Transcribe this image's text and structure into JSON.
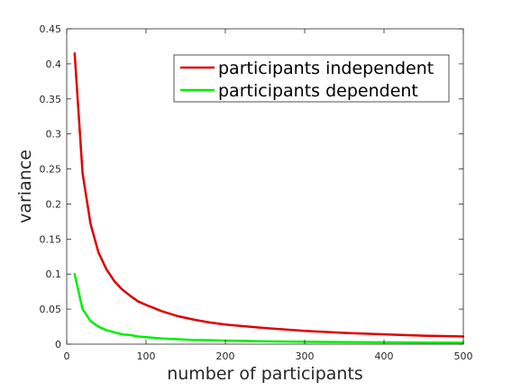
{
  "chart_data": {
    "type": "line",
    "title": "",
    "xlabel": "number of participants",
    "ylabel": "variance",
    "xlim": [
      0,
      500
    ],
    "ylim": [
      0,
      0.45
    ],
    "xticks": [
      0,
      100,
      200,
      300,
      400,
      500
    ],
    "xtick_labels": [
      "0",
      "100",
      "200",
      "300",
      "400",
      "500"
    ],
    "yticks": [
      0,
      0.05,
      0.1,
      0.15,
      0.2,
      0.25,
      0.3,
      0.35,
      0.4,
      0.45
    ],
    "ytick_labels": [
      "0",
      "0.05",
      "0.1",
      "0.15",
      "0.2",
      "0.25",
      "0.3",
      "0.35",
      "0.4",
      "0.45"
    ],
    "grid": false,
    "legend_position": "top-right",
    "series": [
      {
        "name": "participants independent",
        "color": "#dd0000",
        "x": [
          10,
          20,
          30,
          40,
          50,
          60,
          70,
          80,
          90,
          100,
          120,
          140,
          160,
          180,
          200,
          250,
          300,
          350,
          400,
          450,
          500
        ],
        "y": [
          0.415,
          0.244,
          0.172,
          0.131,
          0.107,
          0.09,
          0.078,
          0.069,
          0.061,
          0.056,
          0.047,
          0.04,
          0.035,
          0.031,
          0.028,
          0.023,
          0.019,
          0.016,
          0.014,
          0.012,
          0.011
        ]
      },
      {
        "name": "participants dependent",
        "color": "#00ee00",
        "x": [
          10,
          20,
          30,
          40,
          50,
          60,
          70,
          80,
          90,
          100,
          120,
          140,
          160,
          180,
          200,
          250,
          300,
          350,
          400,
          450,
          500
        ],
        "y": [
          0.1,
          0.05,
          0.033,
          0.025,
          0.02,
          0.017,
          0.014,
          0.013,
          0.011,
          0.01,
          0.008,
          0.007,
          0.006,
          0.0056,
          0.005,
          0.004,
          0.0033,
          0.0029,
          0.0025,
          0.0022,
          0.002
        ]
      }
    ]
  }
}
